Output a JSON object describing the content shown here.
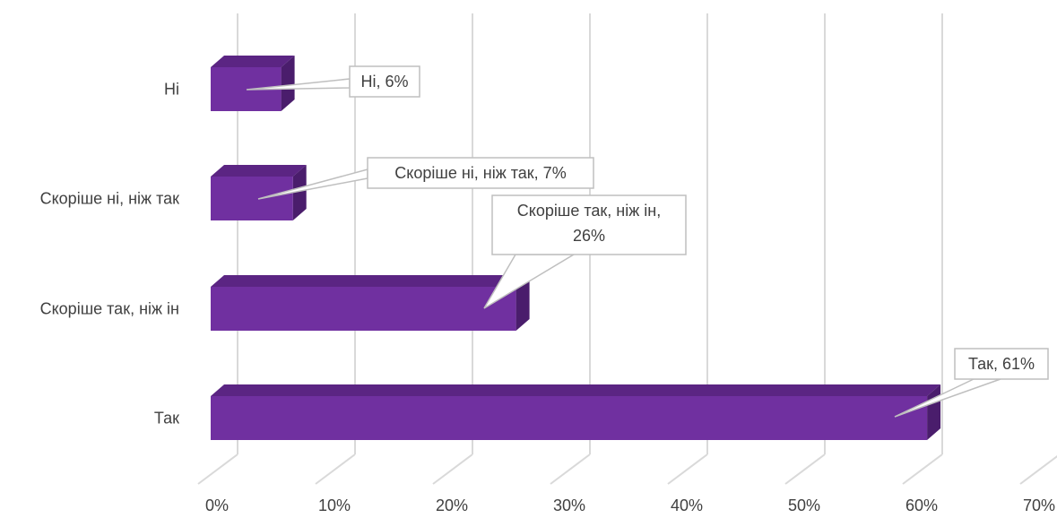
{
  "chart_data": {
    "type": "bar",
    "orientation": "horizontal",
    "style": "3d",
    "categories": [
      "Ні",
      "Скоріше ні, ніж так",
      "Скоріше так, ніж ін",
      "Так"
    ],
    "values": [
      6,
      7,
      26,
      61
    ],
    "data_labels": [
      [
        "Ні, 6%"
      ],
      [
        "Скоріше ні, ніж так, 7%"
      ],
      [
        "Скоріше так, ніж ін,",
        "26%"
      ],
      [
        "Так, 61%"
      ]
    ],
    "xticks": [
      "0%",
      "10%",
      "20%",
      "30%",
      "40%",
      "50%",
      "60%",
      "70%"
    ],
    "xlim": [
      0,
      70
    ],
    "grid": true,
    "legend": "none",
    "colors": {
      "bar_front": "#7030a0",
      "bar_top": "#5b2583",
      "bar_side": "#4a1d6c",
      "grid": "#d9d9d9",
      "callout_border": "#bfbfbf"
    }
  }
}
